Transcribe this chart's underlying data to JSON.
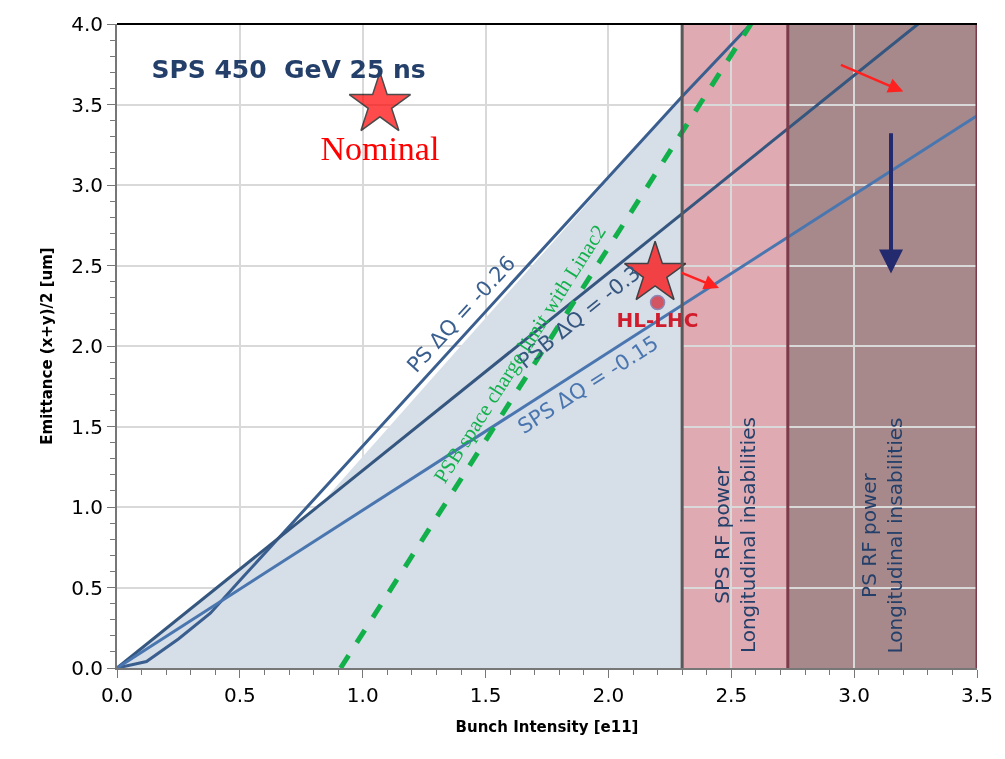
{
  "chart_data": {
    "type": "line",
    "title": "SPS 450  GeV 25 ns",
    "xlabel": "Bunch Intensity [e11]",
    "ylabel": "Emittance (x+y)/2 [um]",
    "xlim": [
      0,
      3.5
    ],
    "xticks": [
      {
        "value": 0,
        "label": "0.0"
      },
      0.5,
      {
        "value": 1,
        "label": "1.0"
      },
      1.5,
      {
        "value": 2,
        "label": "2.0"
      },
      2.5,
      {
        "value": 3,
        "label": "3.0"
      },
      3.5
    ],
    "ylim": [
      0,
      4
    ],
    "yticks": [
      {
        "value": 0,
        "label": "0.0"
      },
      0.5,
      {
        "value": 1,
        "label": "1.0"
      },
      1.5,
      {
        "value": 2,
        "label": "2.0"
      },
      2.5,
      {
        "value": 3,
        "label": "3.0"
      },
      3.5,
      {
        "value": 4,
        "label": "4.0"
      }
    ],
    "grid": true,
    "legend": false,
    "bands": [
      {
        "axis": "x",
        "from": 2.3,
        "to": 2.73,
        "label": "SPS RF power\nLongitudinal insabilities",
        "color": "#dfaab2"
      },
      {
        "axis": "x",
        "from": 2.73,
        "to": 3.5,
        "label": "PS RF power\nLongitudinal insabilities",
        "color": "#a8898b"
      }
    ],
    "ref_lines": [
      {
        "axis": "x",
        "value": 2.3,
        "color": "#595959"
      },
      {
        "axis": "x",
        "value": 2.73,
        "color": "#7b3b4a"
      },
      {
        "axis": "x",
        "value": 3.5,
        "color": "#7b3b4a"
      }
    ],
    "series": [
      {
        "type": "area",
        "color": "#d6dee8",
        "x": [
          0,
          0.83,
          2.3
        ],
        "values": [
          0,
          1.02,
          3.55
        ]
      },
      {
        "name": "PS ΔQ = -0.26",
        "color": "#3a5f8f",
        "line_style": "solid",
        "x": [
          0,
          0.12,
          0.25,
          0.38,
          0.51,
          2.3,
          2.58
        ],
        "values": [
          0,
          0.04,
          0.18,
          0.34,
          0.56,
          3.55,
          4.0
        ]
      },
      {
        "name": "PSB ΔQ = -0.3",
        "color": "#34567f",
        "line_style": "solid",
        "x": [
          0,
          3.26
        ],
        "values": [
          0,
          4.0
        ]
      },
      {
        "name": "SPS ΔQ = -0.15",
        "color": "#4a76b0",
        "line_style": "solid",
        "x": [
          0,
          3.5
        ],
        "values": [
          0,
          3.43
        ]
      },
      {
        "name": "PSB space charge limit with Linac2",
        "color": "#12b04a",
        "line_style": "dashed",
        "x": [
          0.91,
          2.58
        ],
        "values": [
          0,
          4.0
        ]
      },
      {
        "name": "Nominal",
        "type": "scatter",
        "marker": "star",
        "color": "#ff0000",
        "x": [
          1.07
        ],
        "values": [
          3.5
        ]
      },
      {
        "name": "HL-LHC",
        "type": "scatter",
        "marker": [
          "star",
          "circle"
        ],
        "colors": [
          "#ff0000",
          "#d01c2c"
        ],
        "x": [
          2.19,
          2.2
        ],
        "values": [
          2.45,
          2.27
        ]
      }
    ]
  }
}
